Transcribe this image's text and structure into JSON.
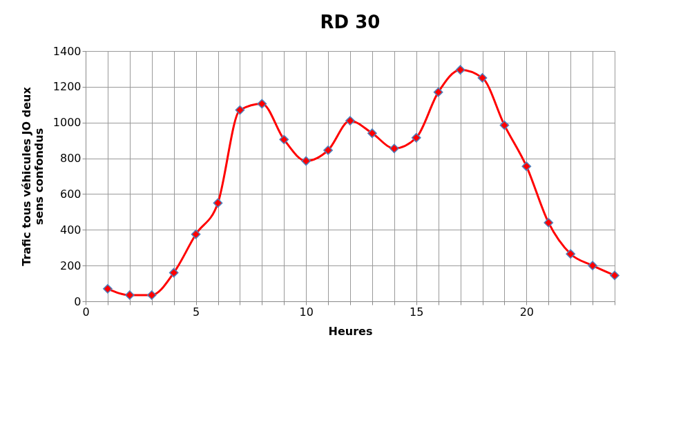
{
  "chart_data": {
    "type": "line",
    "title": "RD 30",
    "xlabel": "Heures",
    "ylabel": "Trafic tous véhicules JO deux sens confondus",
    "x": [
      1,
      2,
      3,
      4,
      5,
      6,
      7,
      8,
      9,
      10,
      11,
      12,
      13,
      14,
      15,
      16,
      17,
      18,
      19,
      20,
      21,
      22,
      23,
      24
    ],
    "series": [
      {
        "color": "#ff0000",
        "values": [
          70,
          35,
          35,
          160,
          375,
          550,
          1070,
          1105,
          905,
          785,
          845,
          1010,
          940,
          855,
          915,
          1170,
          1295,
          1250,
          985,
          755,
          440,
          265,
          200,
          145
        ]
      }
    ],
    "xlim": [
      0,
      24
    ],
    "xticks": [
      0,
      {
        "value": 1,
        "label": null
      },
      {
        "value": 2,
        "label": null
      },
      {
        "value": 3,
        "label": null
      },
      {
        "value": 4,
        "label": null
      },
      5,
      {
        "value": 6,
        "label": null
      },
      {
        "value": 7,
        "label": null
      },
      {
        "value": 8,
        "label": null
      },
      {
        "value": 9,
        "label": null
      },
      10,
      {
        "value": 11,
        "label": null
      },
      {
        "value": 12,
        "label": null
      },
      {
        "value": 13,
        "label": null
      },
      {
        "value": 14,
        "label": null
      },
      15,
      {
        "value": 16,
        "label": null
      },
      {
        "value": 17,
        "label": null
      },
      {
        "value": 18,
        "label": null
      },
      {
        "value": 19,
        "label": null
      },
      20,
      {
        "value": 21,
        "label": null
      },
      {
        "value": 22,
        "label": null
      },
      {
        "value": 23,
        "label": null
      },
      {
        "value": 24,
        "label": null
      }
    ],
    "ylim": [
      0,
      1400
    ],
    "yticks": [
      0,
      200,
      400,
      600,
      800,
      1000,
      1200,
      1400
    ],
    "grid": true,
    "marker": "diamond",
    "line_style": "solid"
  }
}
